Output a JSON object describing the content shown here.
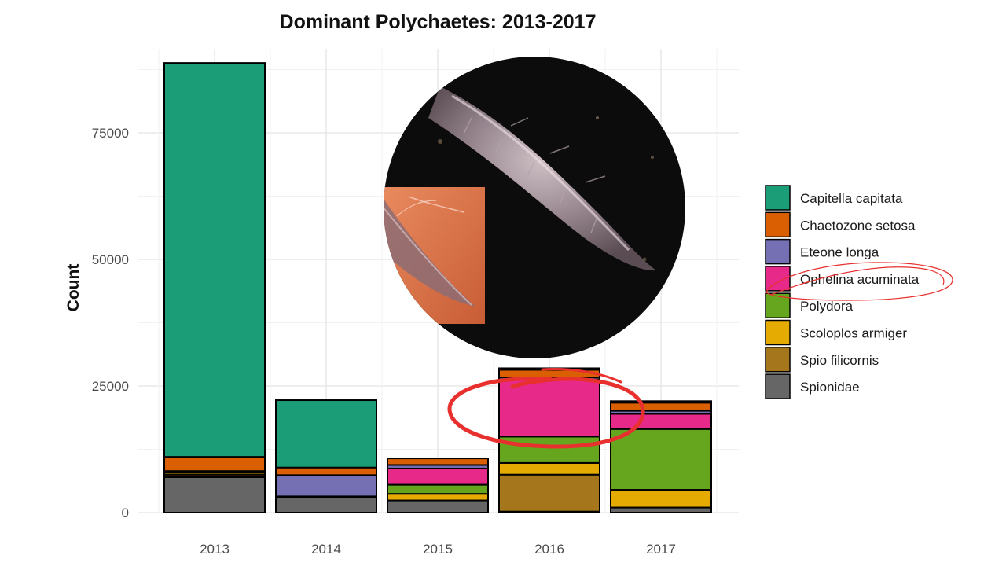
{
  "chart_data": {
    "type": "bar",
    "stacked": true,
    "title": "Dominant Polychaetes: 2013-2017",
    "xlabel": "",
    "ylabel": "Count",
    "ylim": [
      0,
      90000
    ],
    "yticks": [
      0,
      25000,
      50000,
      75000
    ],
    "ytick_labels": [
      "0",
      "25000",
      "50000",
      "75000"
    ],
    "categories": [
      "2013",
      "2014",
      "2015",
      "2016",
      "2017"
    ],
    "grid": true,
    "legend_position": "right",
    "series": [
      {
        "name": "Spionidae",
        "color": "#666666",
        "values": [
          7000,
          3100,
          2400,
          200,
          1000
        ]
      },
      {
        "name": "Spio filicornis",
        "color": "#A6761D",
        "values": [
          500,
          100,
          0,
          7300,
          0
        ]
      },
      {
        "name": "Scoloplos armiger",
        "color": "#E6AB02",
        "values": [
          400,
          0,
          1300,
          2300,
          3500
        ]
      },
      {
        "name": "Polydora",
        "color": "#66A61E",
        "values": [
          0,
          0,
          1800,
          5200,
          12000
        ]
      },
      {
        "name": "Ophelina acuminata",
        "color": "#E7298A",
        "values": [
          0,
          0,
          3200,
          11300,
          3000
        ]
      },
      {
        "name": "Eteone longa",
        "color": "#7570B3",
        "values": [
          300,
          4200,
          700,
          400,
          600
        ]
      },
      {
        "name": "Chaetozone setosa",
        "color": "#D95F02",
        "values": [
          2800,
          1500,
          1300,
          1500,
          1600
        ]
      },
      {
        "name": "Capitella capitata",
        "color": "#1B9E77",
        "values": [
          77800,
          13300,
          0,
          300,
          300
        ]
      }
    ],
    "legend_order": [
      "Capitella capitata",
      "Chaetozone setosa",
      "Eteone longa",
      "Ophelina acuminata",
      "Polydora",
      "Scoloplos armiger",
      "Spio filicornis",
      "Spionidae"
    ]
  },
  "annotations": {
    "red_circle_target": "2016 Ophelina acuminata segment",
    "legend_highlight": "Ophelina acuminata",
    "red_color": "#E8302E"
  },
  "inset_photo": {
    "description_icon": "polychaete-worm-photo"
  }
}
